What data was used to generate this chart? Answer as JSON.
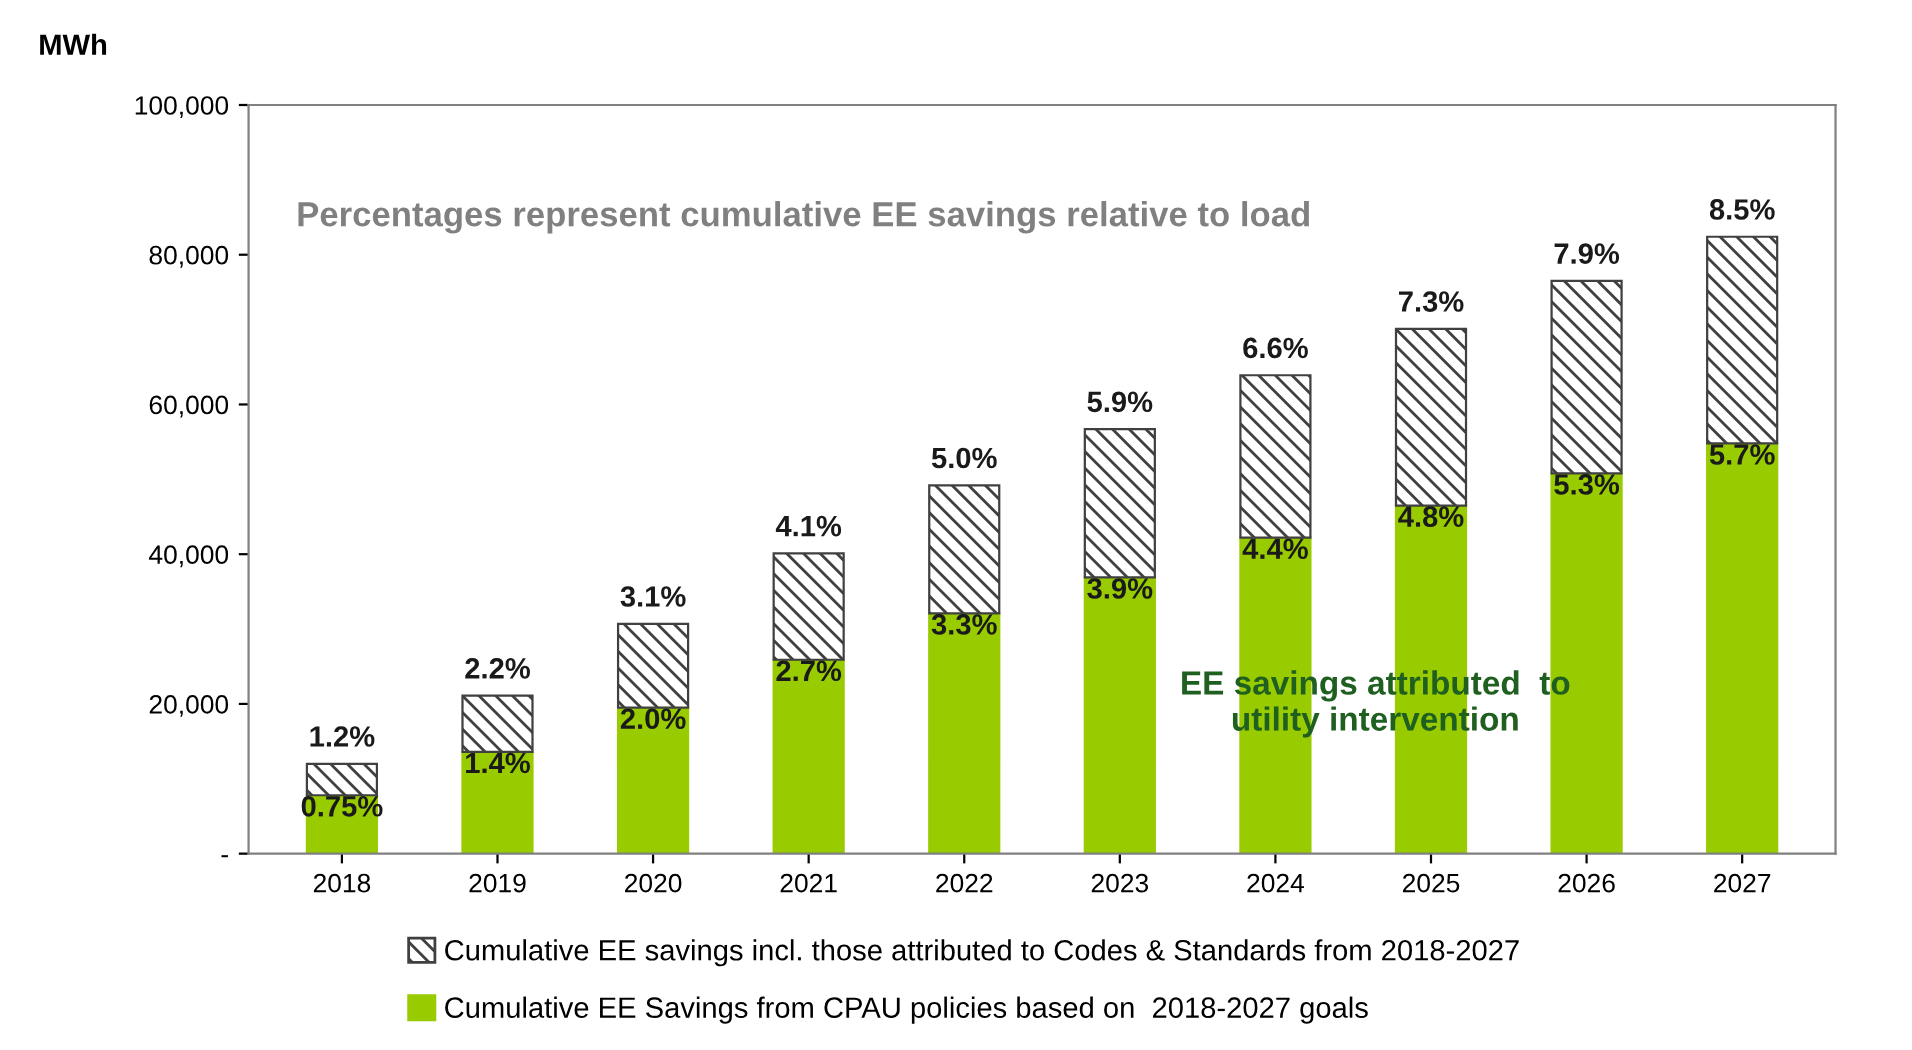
{
  "chart_data": {
    "type": "bar",
    "stacked": true,
    "ylabel": "MWh",
    "categories": [
      "2018",
      "2019",
      "2020",
      "2021",
      "2022",
      "2023",
      "2024",
      "2025",
      "2026",
      "2027"
    ],
    "series": [
      {
        "name": "Cumulative EE Savings from CPAU policies based on  2018-2027 goals",
        "color": "#99cc00",
        "values": [
          7800,
          13600,
          19500,
          25900,
          32100,
          36900,
          42200,
          46500,
          50800,
          54800
        ]
      },
      {
        "name": "Cumulative EE savings incl. those attributed to Codes & Standards from 2018-2027",
        "color": "#404040",
        "values": [
          4200,
          7500,
          11200,
          14200,
          17100,
          19800,
          21700,
          23600,
          25700,
          27600
        ]
      }
    ],
    "ylim": [
      0,
      100000
    ],
    "yticks": [
      {
        "value": 0,
        "label": "-"
      },
      {
        "value": 20000,
        "label": "20,000"
      },
      {
        "value": 40000,
        "label": "40,000"
      },
      {
        "value": 60000,
        "label": "60,000"
      },
      {
        "value": 80000,
        "label": "80,000"
      },
      {
        "value": 100000,
        "label": "100,000"
      }
    ],
    "grid": false,
    "legend": "bottom",
    "annotations": [
      "Percentages represent cumulative EE savings relative to load",
      "EE savings attributed  to\nutility intervention",
      {
        "text": "0.75%",
        "x": "2018",
        "y": 7800
      },
      {
        "text": "1.4%",
        "x": "2019",
        "y": 13600
      },
      {
        "text": "2.0%",
        "x": "2020",
        "y": 19500
      },
      {
        "text": "2.7%",
        "x": "2021",
        "y": 25900
      },
      {
        "text": "3.3%",
        "x": "2022",
        "y": 32100
      },
      {
        "text": "3.9%",
        "x": "2023",
        "y": 36900
      },
      {
        "text": "4.4%",
        "x": "2024",
        "y": 42200
      },
      {
        "text": "4.8%",
        "x": "2025",
        "y": 46500
      },
      {
        "text": "5.3%",
        "x": "2026",
        "y": 50800
      },
      {
        "text": "5.7%",
        "x": "2027",
        "y": 54800
      },
      {
        "text": "1.2%",
        "x": "2018",
        "y": 12000
      },
      {
        "text": "2.2%",
        "x": "2019",
        "y": 21100
      },
      {
        "text": "3.1%",
        "x": "2020",
        "y": 30700
      },
      {
        "text": "4.1%",
        "x": "2021",
        "y": 40100
      },
      {
        "text": "5.0%",
        "x": "2022",
        "y": 49200
      },
      {
        "text": "5.9%",
        "x": "2023",
        "y": 56700
      },
      {
        "text": "6.6%",
        "x": "2024",
        "y": 63900
      },
      {
        "text": "7.3%",
        "x": "2025",
        "y": 70100
      },
      {
        "text": "7.9%",
        "x": "2026",
        "y": 76500
      },
      {
        "text": "8.5%",
        "x": "2027",
        "y": 82400
      }
    ]
  }
}
